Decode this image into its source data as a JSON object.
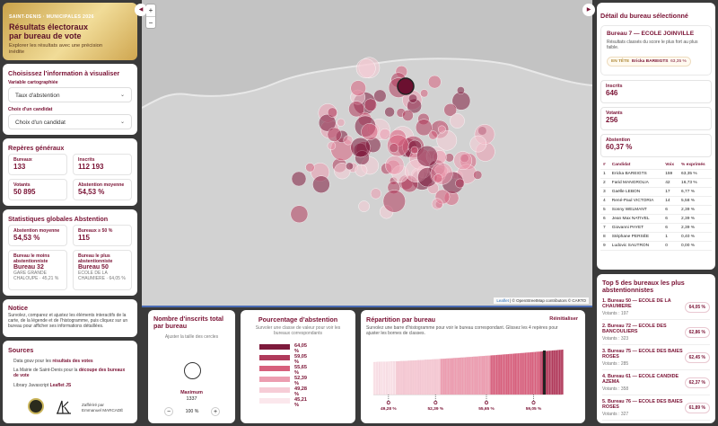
{
  "header": {
    "kicker": "SAINT-DENIS · MUNICIPALES 2026",
    "title_line1": "Résultats électoraux",
    "title_line2": "par bureau de vote",
    "subtitle": "Explorer les résultats avec une précision inédite"
  },
  "choose": {
    "title": "Choisissez l’information à visualiser",
    "variable_label": "Variable cartographiée",
    "variable_value": "Taux d'abstention",
    "candidate_label": "Choix d'un candidat",
    "candidate_value": "Choix d'un candidat"
  },
  "reperes": {
    "title": "Repères généraux",
    "items": [
      {
        "label": "Bureaux",
        "value": "133"
      },
      {
        "label": "Inscrits",
        "value": "112 193"
      },
      {
        "label": "Votants",
        "value": "50 895"
      },
      {
        "label": "Abstention moyenne",
        "value": "54,53 %"
      }
    ]
  },
  "stats": {
    "title": "Statistiques globales Abstention",
    "mean_label": "Abstention moyenne",
    "mean_value": "54,53 %",
    "over_label": "Bureaux ≥ 50 %",
    "over_value": "115",
    "least_label": "Bureau le moins abstentionniste",
    "least_name": "Bureau 32",
    "least_desc": "GARE GRANDE CHALOUPE · 45,21 %",
    "most_label": "Bureau le plus abstentionniste",
    "most_name": "Bureau 50",
    "most_desc": "ECOLE DE LA CHAUMIERE · 64,05 %"
  },
  "notice": {
    "title": "Notice",
    "text": "Survolez, comparez et ajustez les éléments interactifs de la carte, de la légende et de l’histogramme, puis cliquez sur un bureau pour afficher ses informations détaillées."
  },
  "sources": {
    "title": "Sources",
    "line1_pre": "Data gouv pour les ",
    "line1_link": "résultats des votes",
    "line2_pre": "La Mairie de Saint-Denis pour la ",
    "line2_link": "découpe des bureaux de vote",
    "line3_pre": "Library Javascript ",
    "line3_link": "Leaflet JS",
    "credit_line1": "Zaffériré par",
    "credit_line2": "Emmanuel MARCADÉ"
  },
  "map": {
    "zoom_in": "+",
    "zoom_out": "−",
    "attribution_leaflet": "Leaflet",
    "attribution_rest": " | © OpenStreetMap contributors © CARTO",
    "left_toggle": "◀",
    "right_toggle": "▶"
  },
  "size_panel": {
    "title": "Nombre d'inscrits total par bureau",
    "hint": "Ajuster la taille des cercles",
    "max_label": "Maximum",
    "max_value": "1337",
    "zoom_value": "100 %",
    "minus": "−",
    "plus": "+"
  },
  "abst_legend": {
    "title": "Pourcentage d’abstention",
    "hint": "Survoler une classe de valeur pour voir les bureaux correspondants",
    "classes": [
      {
        "label": "64,05 %",
        "color": "#7d1a3c"
      },
      {
        "label": "59,05 %",
        "color": "#b03a5b"
      },
      {
        "label": "55,65 %",
        "color": "#d7607d"
      },
      {
        "label": "52,39 %",
        "color": "#ec9db0"
      },
      {
        "label": "49,28 %",
        "color": "#f6ccd6"
      },
      {
        "label": "45,21 %",
        "color": "#fbe7ec"
      }
    ]
  },
  "histogram": {
    "title": "Répartition par bureau",
    "reset": "Réinitialiser",
    "hint": "Survolez une barre d'histogramme pour voir le bureau correspondant. Glissez les 4 repères pour ajuster les bornes de classes.",
    "markers": [
      "49,28 %",
      "52,39 %",
      "55,65 %",
      "59,05 %"
    ]
  },
  "detail": {
    "title": "Détail du bureau sélectionné",
    "bureau_name": "Bureau 7 — ECOLE JOINVILLE",
    "bureau_sub": "Résultats classés du score le plus fort au plus faible.",
    "leader_tag": "EN TÊTE",
    "leader_name": "Ericka BAREIGTS",
    "leader_score": "63,35 %",
    "inscrits_label": "Inscrits",
    "inscrits_value": "646",
    "votants_label": "Votants",
    "votants_value": "256",
    "abst_label": "Abstention",
    "abst_value": "60,37 %",
    "table_headers": [
      "#",
      "Candidat",
      "Voix",
      "% exprimés"
    ],
    "rows": [
      [
        "1",
        "Ericka BAREIGTS",
        "159",
        "63,35 %"
      ],
      [
        "2",
        "Farid MANGROLIA",
        "42",
        "16,73 %"
      ],
      [
        "3",
        "Gaëlle LEBON",
        "17",
        "6,77 %"
      ],
      [
        "4",
        "René-Paul VICTORIA",
        "14",
        "5,58 %"
      ],
      [
        "5",
        "Sonny WELMANT",
        "6",
        "2,39 %"
      ],
      [
        "6",
        "Jean Max NATIVEL",
        "6",
        "2,39 %"
      ],
      [
        "7",
        "Giovanni PAYET",
        "6",
        "2,39 %"
      ],
      [
        "8",
        "Stéphane PERSÉE",
        "1",
        "0,40 %"
      ],
      [
        "9",
        "Ludovic SAUTRON",
        "0",
        "0,00 %"
      ]
    ]
  },
  "top5": {
    "title": "Top 5 des bureaux les plus abstentionnistes",
    "items": [
      {
        "name": "1. Bureau 50 — ECOLE DE LA CHAUMIERE",
        "votants": "Votants : 197",
        "pct": "64,05 %"
      },
      {
        "name": "2. Bureau 72 — ECOLE DES BANCOULIERS",
        "votants": "Votants : 323",
        "pct": "62,86 %"
      },
      {
        "name": "3. Bureau 75 — ECOLE DES BAIES ROSES",
        "votants": "Votants : 285",
        "pct": "62,45 %"
      },
      {
        "name": "4. Bureau 61 — ECOLE CANDIDE AZEMA",
        "votants": "Votants : 358",
        "pct": "62,37 %"
      },
      {
        "name": "5. Bureau 76 — ECOLE DES BAIES ROSES",
        "votants": "Votants : 327",
        "pct": "61,89 %"
      }
    ]
  }
}
